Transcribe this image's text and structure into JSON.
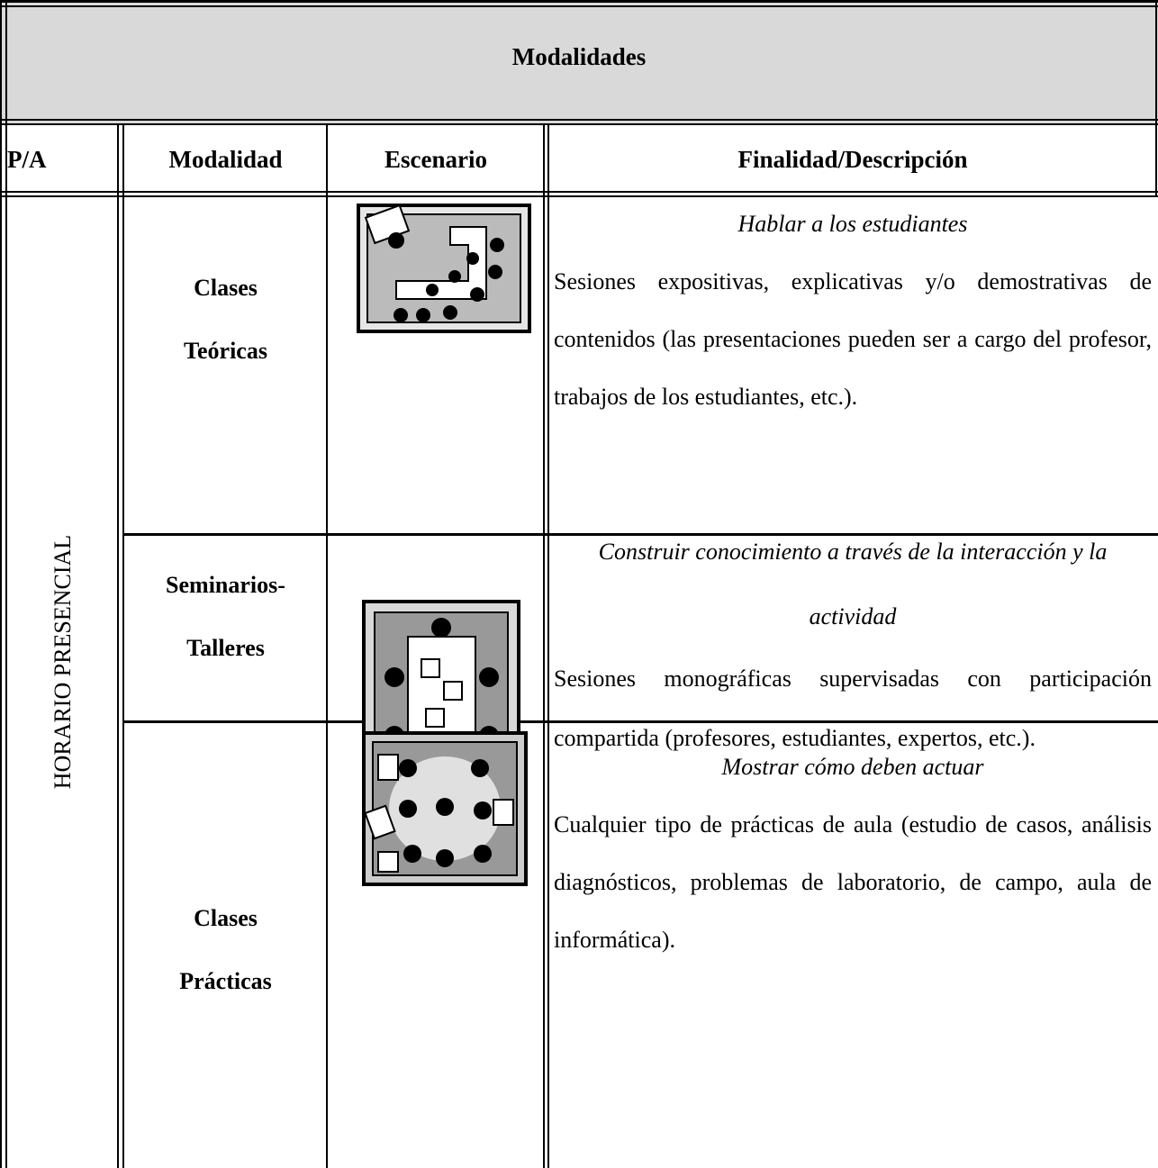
{
  "table": {
    "title": "Modalidades",
    "headers": [
      "P/A",
      "Modalidad",
      "Escenario",
      "Finalidad/Descripción"
    ],
    "group": "HORARIO PRESENCIAL",
    "rows": [
      {
        "modalidad": [
          "Clases",
          "Teóricas"
        ],
        "finalidad": "Hablar a los estudiantes",
        "descripcion": "Sesiones expositivas, explicativas y/o demostrativas de contenidos (las presentaciones pueden ser a cargo del profesor, trabajos de los estudiantes, etc.)."
      },
      {
        "modalidad": [
          "Seminarios-",
          "Talleres"
        ],
        "finalidad": "Construir conocimiento a través de la interacción y la actividad",
        "descripcion": "Sesiones monográficas supervisadas con participación compartida (profesores, estudiantes, expertos, etc.)."
      },
      {
        "modalidad": [
          "Clases",
          "Prácticas"
        ],
        "finalidad": "Mostrar cómo deben actuar",
        "descripcion": "Cualquier tipo de prácticas de aula (estudio de casos, análisis diagnósticos, problemas de laboratorio, de campo, aula de informática)."
      }
    ]
  }
}
